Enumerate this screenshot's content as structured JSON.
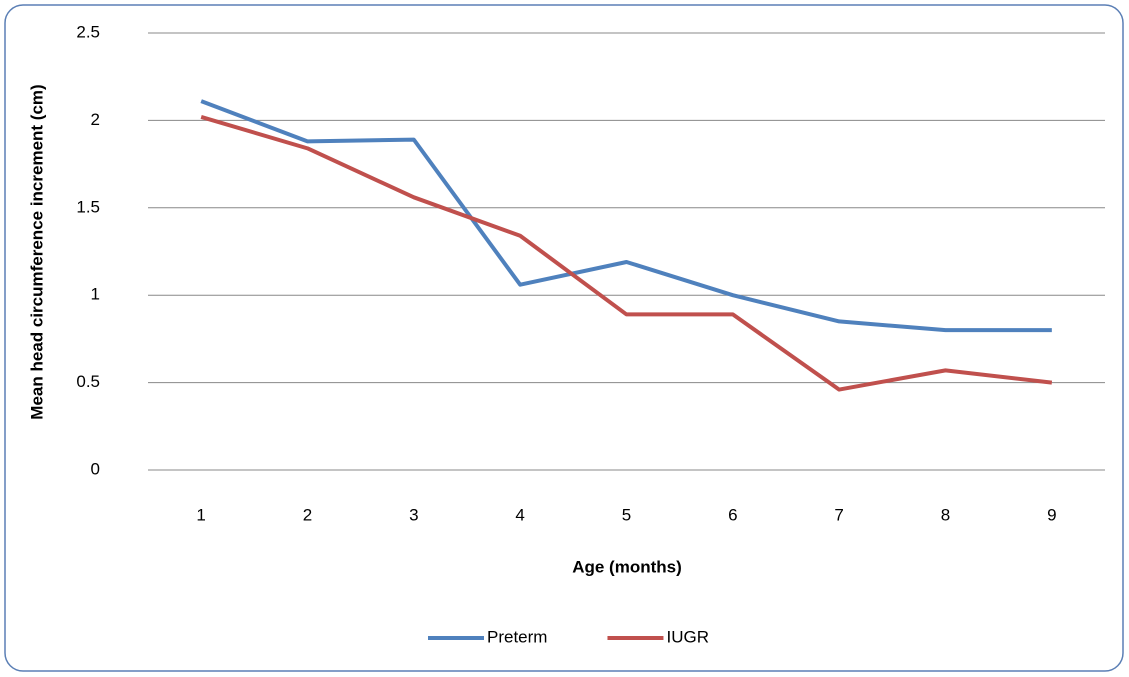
{
  "chart_data": {
    "type": "line",
    "y_label": "Mean head circumference increment (cm)",
    "x_label": "Age (months)",
    "categories": [
      "1",
      "2",
      "3",
      "4",
      "5",
      "6",
      "7",
      "8",
      "9"
    ],
    "series": [
      {
        "name": "Preterm",
        "color": "#4f81bd",
        "values": [
          2.11,
          1.88,
          1.89,
          1.06,
          1.19,
          1.0,
          0.85,
          0.8,
          0.8
        ]
      },
      {
        "name": "IUGR",
        "color": "#c0504d",
        "values": [
          2.02,
          1.84,
          1.56,
          1.34,
          0.89,
          0.89,
          0.46,
          0.57,
          0.5
        ]
      }
    ],
    "ylim": [
      0,
      2.5
    ],
    "yticks": [
      0,
      0.5,
      1,
      1.5,
      2,
      2.5
    ],
    "grid": true,
    "legend": "bottom"
  }
}
